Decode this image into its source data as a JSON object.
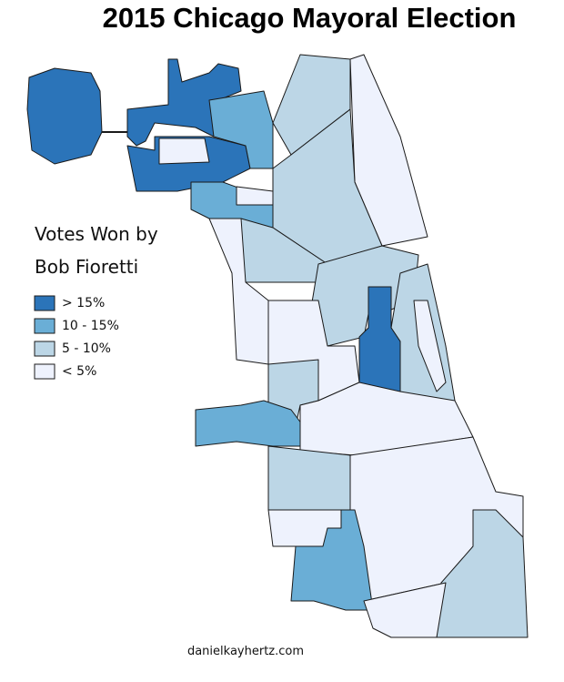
{
  "title": "2015 Chicago Mayoral Election",
  "legend": {
    "title_lines": [
      "Votes Won by",
      "Bob Fioretti"
    ],
    "items": [
      {
        "label": "> 15%",
        "color": "#2b74b9"
      },
      {
        "label": "10 - 15%",
        "color": "#6aaed6"
      },
      {
        "label": "5 - 10%",
        "color": "#bcd6e6"
      },
      {
        "label": "< 5%",
        "color": "#eef2fd"
      }
    ]
  },
  "credit": "danielkayhertz.com"
}
